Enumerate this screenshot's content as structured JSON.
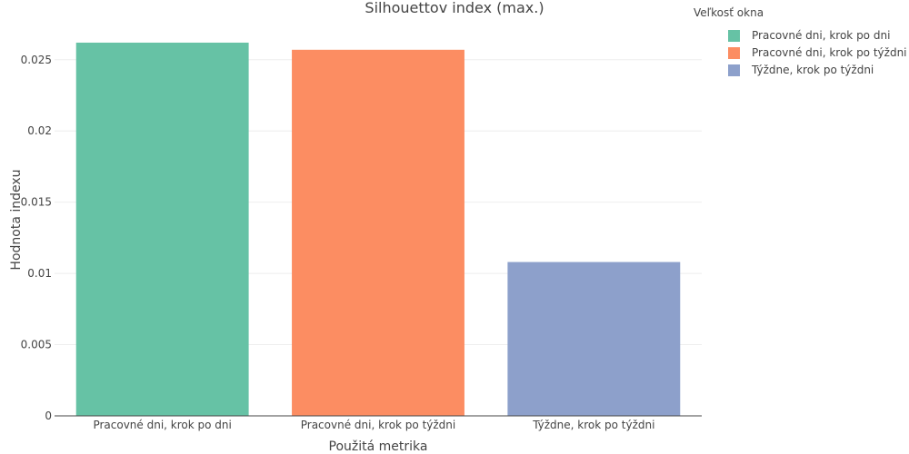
{
  "chart_data": {
    "type": "bar",
    "title": "Silhouettov index (max.)",
    "xlabel": "Použitá metrika",
    "ylabel": "Hodnota indexu",
    "categories": [
      "Pracovné dni, krok po dni",
      "Pracovné dni, krok po týždni",
      "Týždne, krok po týždni"
    ],
    "series": [
      {
        "name": "Pracovné dni, krok po dni",
        "category": "Pracovné dni, krok po dni",
        "value": 0.0262,
        "color": "#66c2a5"
      },
      {
        "name": "Pracovné dni, krok po týždni",
        "category": "Pracovné dni, krok po týždni",
        "value": 0.0257,
        "color": "#fc8d62"
      },
      {
        "name": "Týždne, krok po týždni",
        "category": "Týždne, krok po týždni",
        "value": 0.0108,
        "color": "#8da0cb"
      }
    ],
    "ylim": [
      0,
      0.0276
    ],
    "yticks": [
      0,
      0.005,
      0.01,
      0.015,
      0.02,
      0.025
    ],
    "ytick_labels": [
      "0",
      "0.005",
      "0.01",
      "0.015",
      "0.02",
      "0.025"
    ],
    "grid": true,
    "legend": {
      "title": "Veľkosť okna",
      "placement": "top-right"
    }
  }
}
